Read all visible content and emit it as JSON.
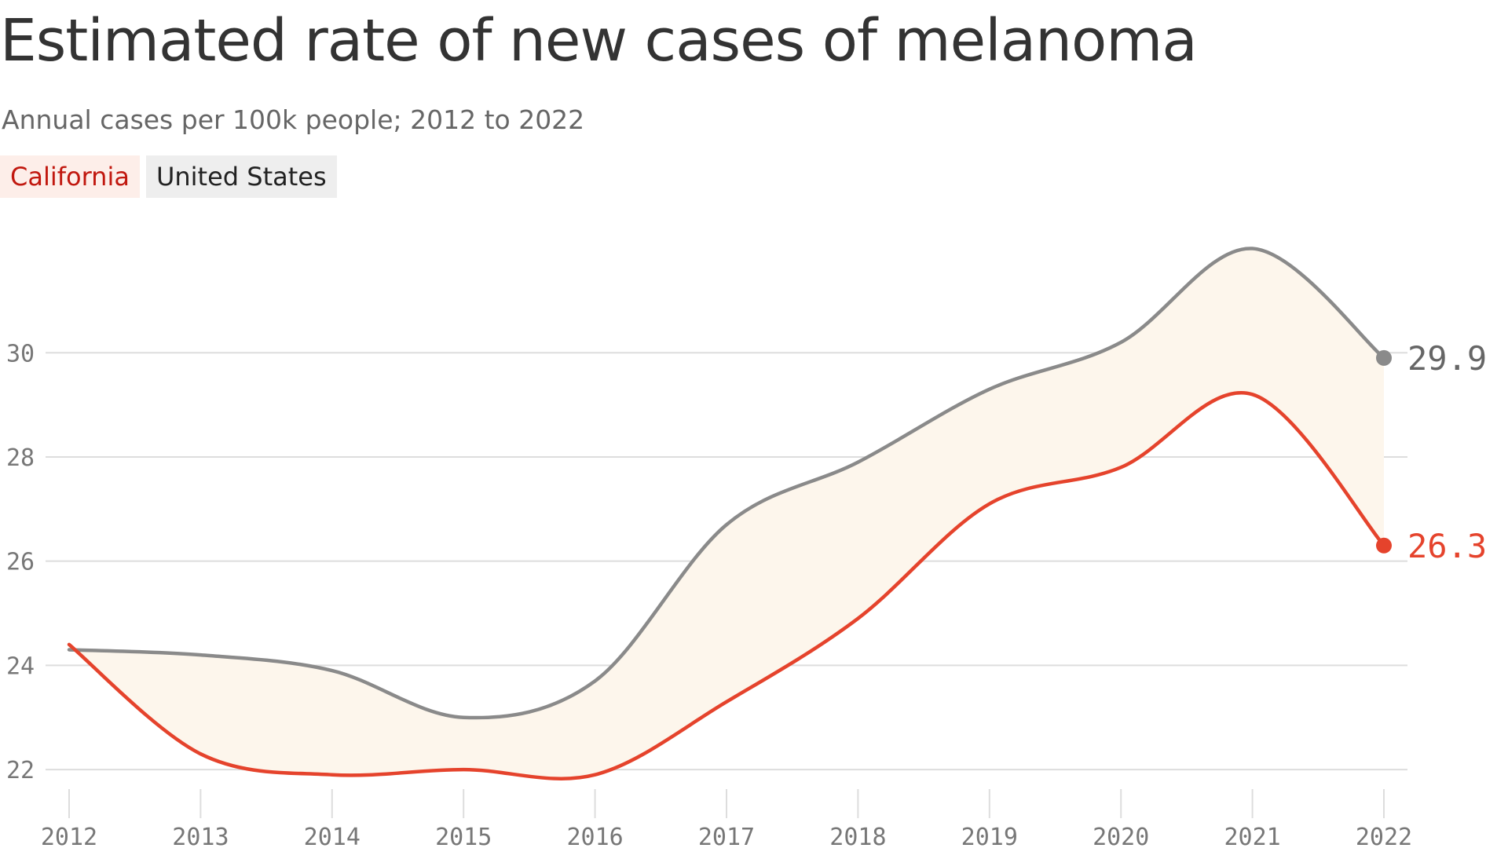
{
  "header": {
    "title": "Estimated rate of new cases of melanoma",
    "subtitle": "Annual cases per 100k people; 2012 to 2022"
  },
  "legend": [
    {
      "label": "California",
      "color": "#c1180f",
      "background": "#fdeee9"
    },
    {
      "label": "United States",
      "color": "#222222",
      "background": "#eeeeee"
    }
  ],
  "colors": {
    "california_line": "#e5432c",
    "united_states_line": "#8a8a8a",
    "fill_between": "#fdf6ec",
    "gridline": "#dddddd",
    "tick_text": "#777777"
  },
  "chart_data": {
    "type": "line",
    "title": "Estimated rate of new cases of melanoma",
    "subtitle": "Annual cases per 100k people; 2012 to 2022",
    "xlabel": "",
    "ylabel": "",
    "x": [
      "2012",
      "2013",
      "2014",
      "2015",
      "2016",
      "2017",
      "2018",
      "2019",
      "2020",
      "2021",
      "2022"
    ],
    "series": [
      {
        "name": "California",
        "values": [
          24.4,
          22.3,
          21.9,
          22.0,
          21.9,
          23.3,
          24.9,
          27.1,
          27.8,
          29.2,
          26.3
        ]
      },
      {
        "name": "United States",
        "values": [
          24.3,
          24.2,
          23.9,
          23.0,
          23.7,
          26.7,
          27.9,
          29.3,
          30.2,
          32.0,
          29.9
        ]
      }
    ],
    "y_ticks": [
      "22",
      "24",
      "26",
      "28",
      "30"
    ],
    "ylim": [
      21.7,
      32.4
    ],
    "end_labels": [
      {
        "series": "United States",
        "text": "29.9"
      },
      {
        "series": "California",
        "text": "26.3"
      }
    ],
    "fill_between_series": true,
    "grid": "horizontal",
    "legend_position": "top-left"
  }
}
